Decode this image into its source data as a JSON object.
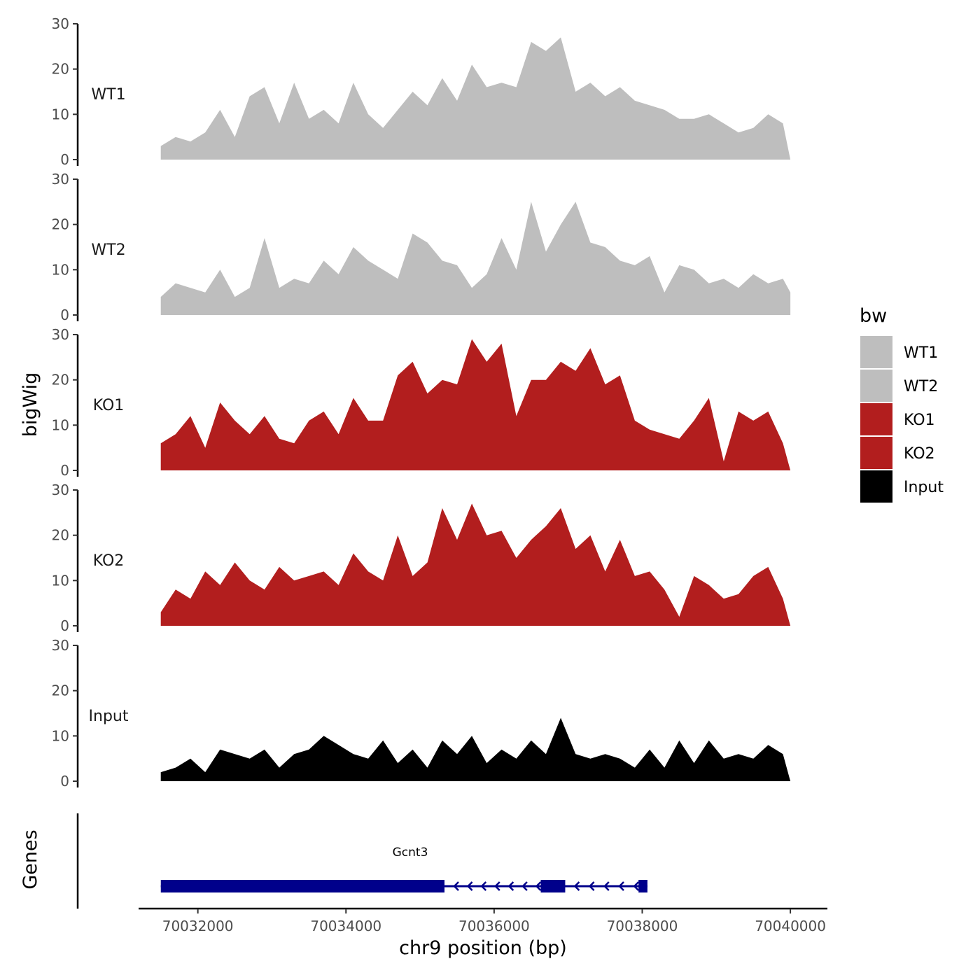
{
  "chart_data": {
    "type": "area",
    "ylabel": "bigWig",
    "xlabel": "chr9 position (bp)",
    "ylim": [
      0,
      30
    ],
    "y_ticks": [
      0,
      10,
      20,
      30
    ],
    "xlim": [
      70031200,
      70040500
    ],
    "x_ticks": [
      70032000,
      70034000,
      70036000,
      70038000,
      70040000
    ],
    "x_tick_labels": [
      "70032000",
      "70034000",
      "70036000",
      "70038000",
      "70040000"
    ],
    "y_tick_labels": [
      "0",
      "10",
      "20",
      "30"
    ],
    "legend": {
      "title": "bw",
      "position": "right",
      "entries": [
        {
          "label": "WT1",
          "color": "#bebebe"
        },
        {
          "label": "WT2",
          "color": "#bebebe"
        },
        {
          "label": "KO1",
          "color": "#b21e1e"
        },
        {
          "label": "KO2",
          "color": "#b21e1e"
        },
        {
          "label": "Input",
          "color": "#000000"
        }
      ]
    },
    "x": [
      70031500,
      70031700,
      70031900,
      70032100,
      70032300,
      70032500,
      70032700,
      70032900,
      70033100,
      70033300,
      70033500,
      70033700,
      70033900,
      70034100,
      70034300,
      70034500,
      70034700,
      70034900,
      70035100,
      70035300,
      70035500,
      70035700,
      70035900,
      70036100,
      70036300,
      70036500,
      70036700,
      70036900,
      70037100,
      70037300,
      70037500,
      70037700,
      70037900,
      70038100,
      70038300,
      70038500,
      70038700,
      70038900,
      70039100,
      70039300,
      70039500,
      70039700,
      70039900,
      70040000
    ],
    "series": [
      {
        "name": "WT1",
        "color": "#bebebe",
        "values": [
          3,
          5,
          4,
          6,
          11,
          5,
          14,
          16,
          8,
          17,
          9,
          11,
          8,
          17,
          10,
          7,
          11,
          15,
          12,
          18,
          13,
          21,
          16,
          17,
          16,
          26,
          24,
          27,
          15,
          17,
          14,
          16,
          13,
          12,
          11,
          9,
          9,
          10,
          8,
          6,
          7,
          10,
          8,
          0
        ]
      },
      {
        "name": "WT2",
        "color": "#bebebe",
        "values": [
          4,
          7,
          6,
          5,
          10,
          4,
          6,
          17,
          6,
          8,
          7,
          12,
          9,
          15,
          12,
          10,
          8,
          18,
          16,
          12,
          11,
          6,
          9,
          17,
          10,
          25,
          14,
          20,
          25,
          16,
          15,
          12,
          11,
          13,
          5,
          11,
          10,
          7,
          8,
          6,
          9,
          7,
          8,
          5
        ]
      },
      {
        "name": "KO1",
        "color": "#b21e1e",
        "values": [
          6,
          8,
          12,
          5,
          15,
          11,
          8,
          12,
          7,
          6,
          11,
          13,
          8,
          16,
          11,
          11,
          21,
          24,
          17,
          20,
          19,
          29,
          24,
          28,
          12,
          20,
          20,
          24,
          22,
          27,
          19,
          21,
          11,
          9,
          8,
          7,
          11,
          16,
          2,
          13,
          11,
          13,
          6,
          0
        ]
      },
      {
        "name": "KO2",
        "color": "#b21e1e",
        "values": [
          3,
          8,
          6,
          12,
          9,
          14,
          10,
          8,
          13,
          10,
          11,
          12,
          9,
          16,
          12,
          10,
          20,
          11,
          14,
          26,
          19,
          27,
          20,
          21,
          15,
          19,
          22,
          26,
          17,
          20,
          12,
          19,
          11,
          12,
          8,
          2,
          11,
          9,
          6,
          7,
          11,
          13,
          6,
          0
        ]
      },
      {
        "name": "Input",
        "color": "#000000",
        "values": [
          2,
          3,
          5,
          2,
          7,
          6,
          5,
          7,
          3,
          6,
          7,
          10,
          8,
          6,
          5,
          9,
          4,
          7,
          3,
          9,
          6,
          10,
          4,
          7,
          5,
          9,
          6,
          14,
          6,
          5,
          6,
          5,
          3,
          7,
          3,
          9,
          4,
          9,
          5,
          6,
          5,
          8,
          6,
          0
        ]
      }
    ]
  },
  "track_labels": [
    "WT1",
    "WT2",
    "KO1",
    "KO2",
    "Input"
  ],
  "genes_panel": {
    "title": "Genes",
    "gene_name": "Gcnt3",
    "strand": "-",
    "color": "#00008b",
    "blocks": [
      [
        70031500,
        70035330
      ],
      [
        70036630,
        70036960
      ],
      [
        70037950,
        70038070
      ]
    ],
    "line": [
      70031500,
      70038070
    ]
  }
}
